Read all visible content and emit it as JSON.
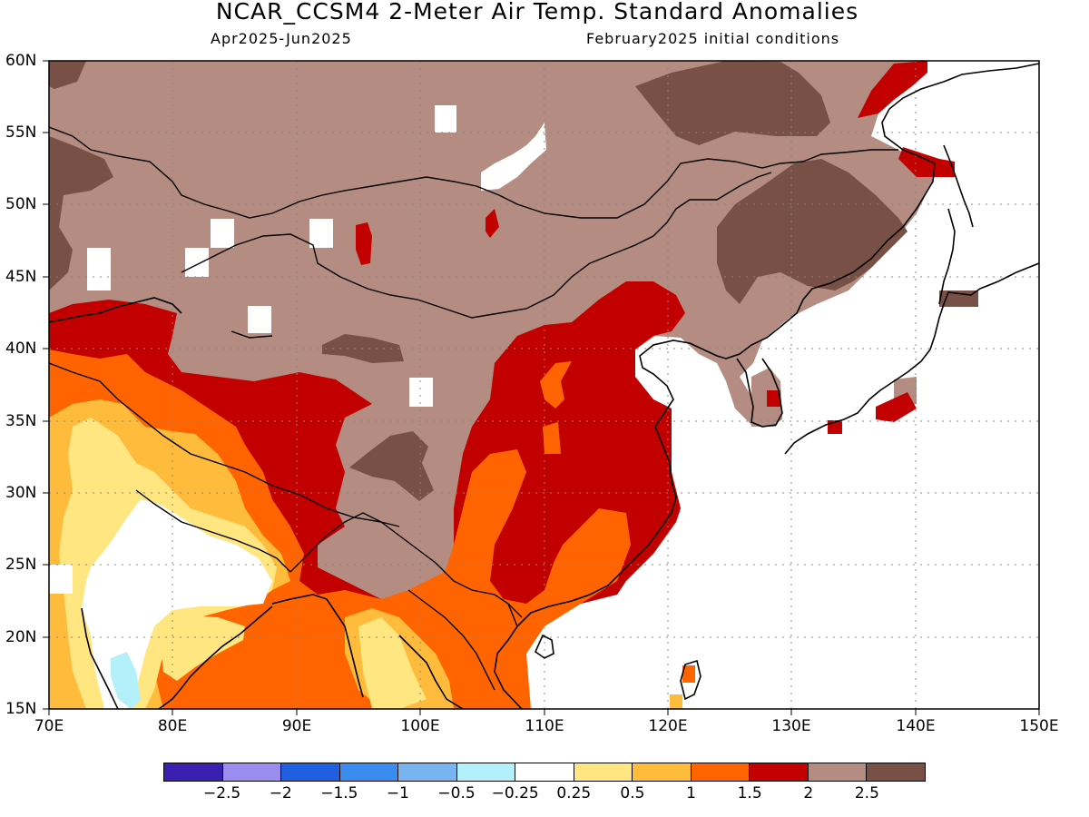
{
  "title": "NCAR_CCSM4 2-Meter Air Temp. Standard Anomalies",
  "subtitle_left": "Apr2025-Jun2025",
  "subtitle_right": "February2025 initial conditions",
  "lat_labels": [
    "60N",
    "55N",
    "50N",
    "45N",
    "40N",
    "35N",
    "30N",
    "25N",
    "20N",
    "15N"
  ],
  "lon_labels": [
    "70E",
    "80E",
    "90E",
    "100E",
    "110E",
    "120E",
    "130E",
    "140E",
    "150E"
  ],
  "colorbar": {
    "colors": [
      "#3a1fb0",
      "#9b8cf0",
      "#1f5fe0",
      "#3c8cf0",
      "#78b4f0",
      "#b4f0fa",
      "#ffffff",
      "#ffe680",
      "#ffbb3c",
      "#ff6400",
      "#c30000",
      "#b48c82",
      "#785046"
    ],
    "labels": [
      "−2.5",
      "−2",
      "−1.5",
      "−1",
      "−0.5",
      "−0.25",
      "0.25",
      "0.5",
      "1",
      "1.5",
      "2",
      "2.5"
    ]
  },
  "palette": {
    "light_brown": "#b48c82",
    "dark_brown": "#785046",
    "dark_red": "#c30000",
    "orange": "#ff6400",
    "light_orange": "#ffbb3c",
    "yellow": "#ffe680",
    "cyan": "#b4f0fa",
    "white": "#ffffff"
  }
}
